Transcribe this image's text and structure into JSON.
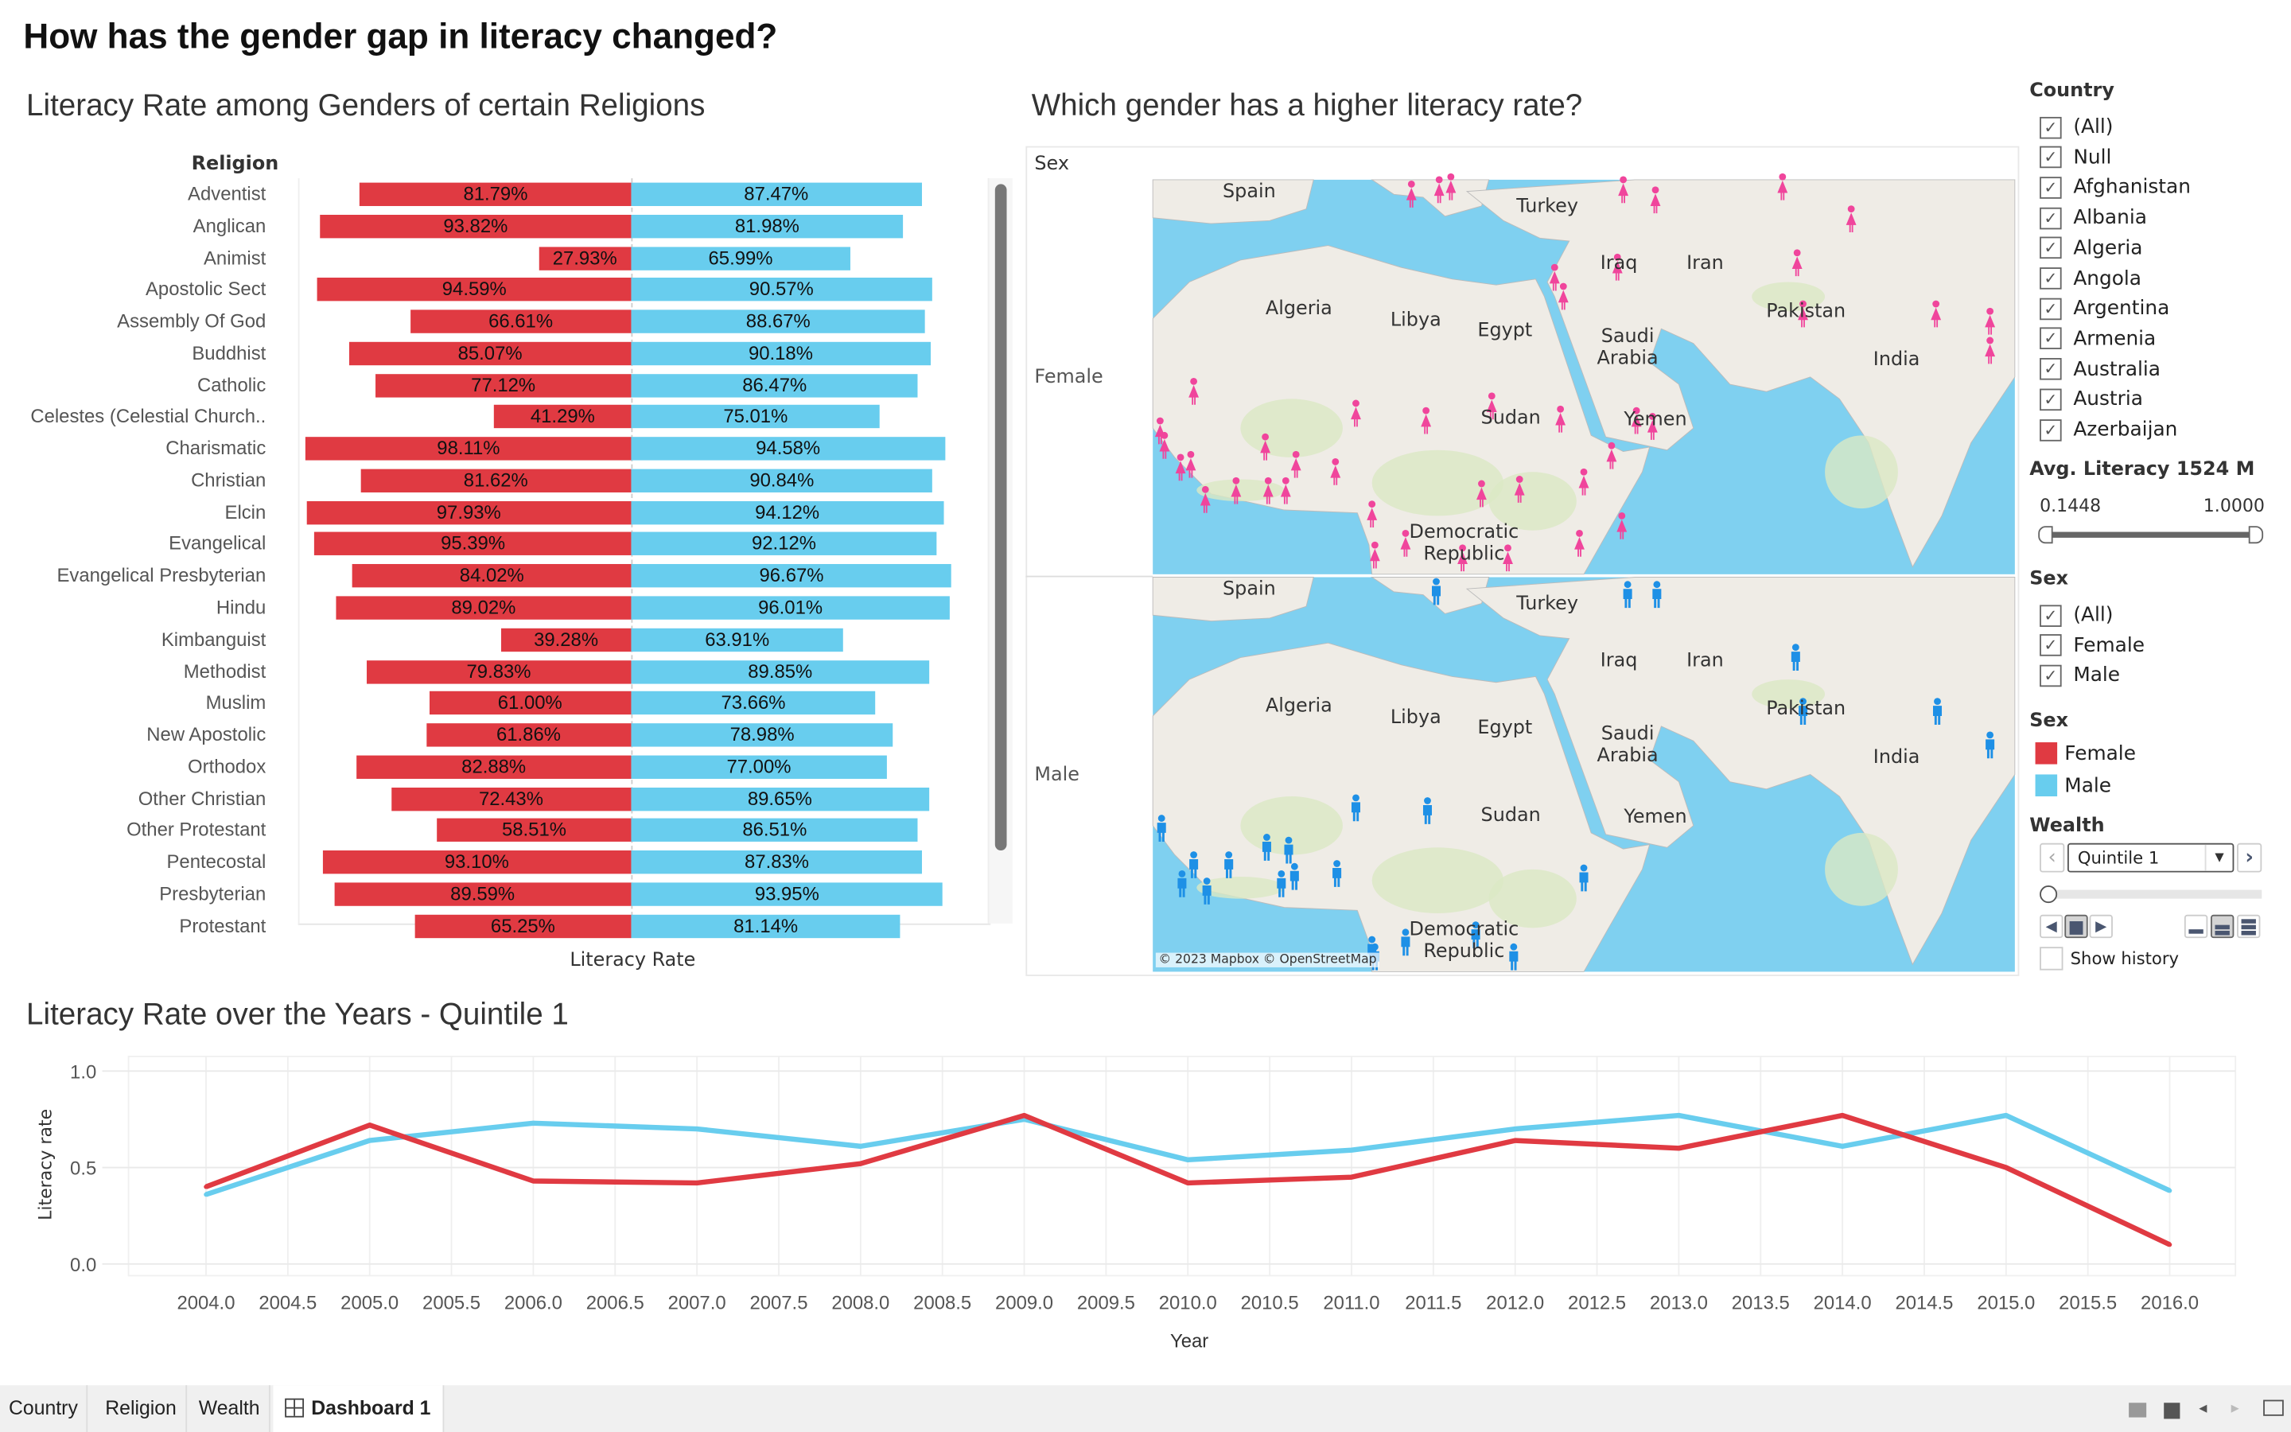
{
  "dashboard": {
    "title": "How has the gender gap in literacy changed?"
  },
  "colors": {
    "female": "#e03a42",
    "male": "#68cdee",
    "map_water": "#7fd0f0",
    "map_land": "#efece6"
  },
  "bar_chart": {
    "title": "Literacy Rate among Genders of certain Religions",
    "column_header": "Religion",
    "axis_label": "Literacy Rate",
    "chart_data": {
      "type": "bar",
      "orientation": "diverging-horizontal",
      "categories": [
        "Adventist",
        "Anglican",
        "Animist",
        "Apostolic Sect",
        "Assembly Of God",
        "Buddhist",
        "Catholic",
        "Celestes (Celestial Church..",
        "Charismatic",
        "Christian",
        "Elcin",
        "Evangelical",
        "Evangelical Presbyterian",
        "Hindu",
        "Kimbanguist",
        "Methodist",
        "Muslim",
        "New Apostolic",
        "Orthodox",
        "Other Christian",
        "Other Protestant",
        "Pentecostal",
        "Presbyterian",
        "Protestant"
      ],
      "series": [
        {
          "name": "Female",
          "values": [
            81.79,
            93.82,
            27.93,
            94.59,
            66.61,
            85.07,
            77.12,
            41.29,
            98.11,
            81.62,
            97.93,
            95.39,
            84.02,
            89.02,
            39.28,
            79.83,
            61.0,
            61.86,
            82.88,
            72.43,
            58.51,
            93.1,
            89.59,
            65.25
          ],
          "labels": [
            "81.79%",
            "93.82%",
            "27.93%",
            "94.59%",
            "66.61%",
            "85.07%",
            "77.12%",
            "41.29%",
            "98.11%",
            "81.62%",
            "97.93%",
            "95.39%",
            "84.02%",
            "89.02%",
            "39.28%",
            "79.83%",
            "61.00%",
            "61.86%",
            "82.88%",
            "72.43%",
            "58.51%",
            "93.10%",
            "89.59%",
            "65.25%"
          ]
        },
        {
          "name": "Male",
          "values": [
            87.47,
            81.98,
            65.99,
            90.57,
            88.67,
            90.18,
            86.47,
            75.01,
            94.58,
            90.84,
            94.12,
            92.12,
            96.67,
            96.01,
            63.91,
            89.85,
            73.66,
            78.98,
            77.0,
            89.65,
            86.51,
            87.83,
            93.95,
            81.14
          ],
          "labels": [
            "87.47%",
            "81.98%",
            "65.99%",
            "90.57%",
            "88.67%",
            "90.18%",
            "86.47%",
            "75.01%",
            "94.58%",
            "90.84%",
            "94.12%",
            "92.12%",
            "96.67%",
            "96.01%",
            "63.91%",
            "89.85%",
            "73.66%",
            "78.98%",
            "77.00%",
            "89.65%",
            "86.51%",
            "87.83%",
            "93.95%",
            "81.14%"
          ]
        }
      ]
    }
  },
  "map": {
    "title": "Which gender has a higher literacy rate?",
    "row_header": "Sex",
    "rows": [
      "Female",
      "Male"
    ],
    "labels": [
      "Spain",
      "Turkey",
      "Iraq",
      "Iran",
      "Algeria",
      "Libya",
      "Egypt",
      "Saudi Arabia",
      "Pakistan",
      "India",
      "Sudan",
      "Yemen",
      "Democratic Republic"
    ],
    "attribution": "© 2023 Mapbox © OpenStreetMap"
  },
  "line_chart": {
    "title": "Literacy Rate over the Years - Quintile 1",
    "chart_data": {
      "type": "line",
      "x": [
        2004,
        2005,
        2006,
        2007,
        2008,
        2009,
        2010,
        2011,
        2012,
        2013,
        2014,
        2015,
        2016
      ],
      "xlabel": "Year",
      "ylabel": "Literacy rate",
      "xlim": [
        2003.6,
        2016.4
      ],
      "ylim": [
        0,
        1
      ],
      "xticks": [
        "2004.0",
        "2004.5",
        "2005.0",
        "2005.5",
        "2006.0",
        "2006.5",
        "2007.0",
        "2007.5",
        "2008.0",
        "2008.5",
        "2009.0",
        "2009.5",
        "2010.0",
        "2010.5",
        "2011.0",
        "2011.5",
        "2012.0",
        "2012.5",
        "2013.0",
        "2013.5",
        "2014.0",
        "2014.5",
        "2015.0",
        "2015.5",
        "2016.0"
      ],
      "yticks": [
        "1.0",
        "0.5",
        "0.0"
      ],
      "grid": true,
      "series": [
        {
          "color": "#68cdee",
          "values": [
            0.36,
            0.64,
            0.73,
            0.7,
            0.61,
            0.75,
            0.54,
            0.59,
            0.7,
            0.77,
            0.61,
            0.77,
            0.38
          ]
        },
        {
          "color": "#e03a42",
          "values": [
            0.4,
            0.72,
            0.43,
            0.42,
            0.52,
            0.77,
            0.42,
            0.45,
            0.64,
            0.6,
            0.77,
            0.5,
            0.1
          ]
        }
      ]
    }
  },
  "filters": {
    "country": {
      "label": "Country",
      "items": [
        "(All)",
        "Null",
        "Afghanistan",
        "Albania",
        "Algeria",
        "Angola",
        "Argentina",
        "Armenia",
        "Australia",
        "Austria",
        "Azerbaijan"
      ]
    },
    "avg_literacy": {
      "label": "Avg. Literacy 1524 M",
      "min": "0.1448",
      "max": "1.0000"
    },
    "sex": {
      "label": "Sex",
      "items": [
        "(All)",
        "Female",
        "Male"
      ]
    },
    "legend": {
      "label": "Sex",
      "items": [
        "Female",
        "Male"
      ]
    },
    "wealth": {
      "label": "Wealth",
      "selected": "Quintile 1",
      "show_history": "Show history"
    }
  },
  "tabs": [
    "Country",
    "Religion",
    "Wealth",
    "Dashboard 1"
  ]
}
